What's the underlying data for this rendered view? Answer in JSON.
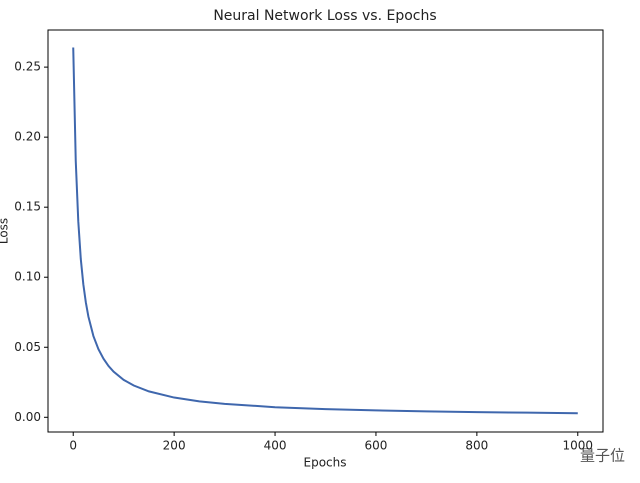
{
  "chart_data": {
    "type": "line",
    "title": "Neural Network Loss vs. Epochs",
    "x_label": "Epochs",
    "y_label": "Loss",
    "x": [
      0,
      5,
      10,
      15,
      20,
      25,
      30,
      40,
      50,
      60,
      70,
      80,
      100,
      120,
      150,
      200,
      250,
      300,
      400,
      500,
      600,
      700,
      800,
      900,
      1000
    ],
    "series": [
      {
        "name": "Loss",
        "color": "#3f67ad",
        "values": [
          0.264,
          0.183,
          0.14,
          0.113,
          0.095,
          0.082,
          0.072,
          0.058,
          0.0486,
          0.0418,
          0.0366,
          0.0326,
          0.0267,
          0.0227,
          0.0185,
          0.0141,
          0.0114,
          0.0096,
          0.0072,
          0.0058,
          0.0049,
          0.0042,
          0.0037,
          0.0033,
          0.0029
        ]
      }
    ],
    "xlim": [
      -50,
      1050
    ],
    "xticks": [
      0,
      200,
      400,
      600,
      800,
      1000
    ],
    "ylim": [
      -0.0105,
      0.2765
    ],
    "yticks": [
      {
        "value": 0,
        "label": "0.00"
      },
      0.05,
      {
        "value": 0.1,
        "label": "0.10"
      },
      0.15,
      {
        "value": 0.2,
        "label": "0.20"
      },
      0.25
    ],
    "grid": false,
    "legend": false
  },
  "watermark": "量子位"
}
